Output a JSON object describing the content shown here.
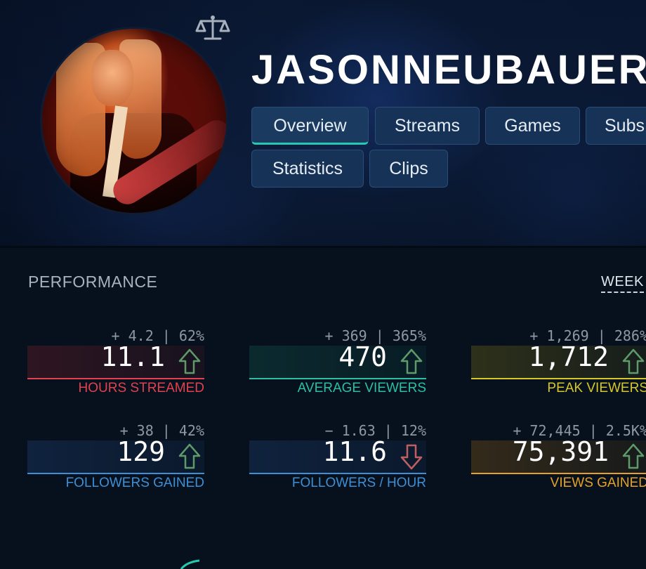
{
  "profile": {
    "username": "JASONNEUBAUER",
    "avatar_icon": "streamer-avatar",
    "compare_icon": "scale-icon"
  },
  "tabs": [
    {
      "label": "Overview",
      "active": true
    },
    {
      "label": "Streams",
      "active": false
    },
    {
      "label": "Games",
      "active": false
    },
    {
      "label": "Subs",
      "active": false
    },
    {
      "label": "Statistics",
      "active": false
    },
    {
      "label": "Clips",
      "active": false
    }
  ],
  "performance": {
    "title": "PERFORMANCE",
    "period": "WEEK",
    "stats": [
      {
        "delta": "+ 4.2 | 62%",
        "value": "11.1",
        "trend": "up",
        "label": "HOURS STREAMED",
        "color": "#e2414f"
      },
      {
        "delta": "+ 369 | 365%",
        "value": "470",
        "trend": "up",
        "label": "AVERAGE VIEWERS",
        "color": "#2bbfa5"
      },
      {
        "delta": "+ 1,269 | 286%",
        "value": "1,712",
        "trend": "up",
        "label": "PEAK VIEWERS",
        "color": "#d6c72b"
      },
      {
        "delta": "+ 38 | 42%",
        "value": "129",
        "trend": "up",
        "label": "FOLLOWERS GAINED",
        "color": "#3d8fd6"
      },
      {
        "delta": "− 1.63 | 12%",
        "value": "11.6",
        "trend": "down",
        "label": "FOLLOWERS / HOUR",
        "color": "#3d8fd6"
      },
      {
        "delta": "+ 72,445 | 2.5K%",
        "value": "75,391",
        "trend": "up",
        "label": "VIEWS GAINED",
        "color": "#e6a126"
      }
    ]
  },
  "colors": {
    "arrow_up": "#5f9a6a",
    "arrow_down": "#c05f5f",
    "tab_active_underline": "#26c9b0"
  }
}
